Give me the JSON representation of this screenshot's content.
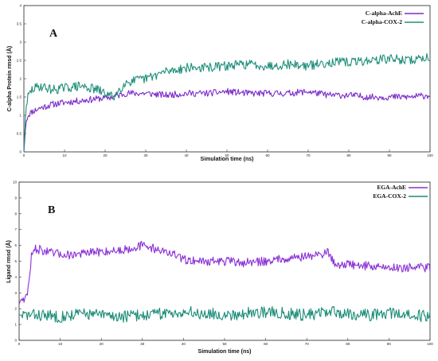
{
  "chart_data": [
    {
      "type": "line",
      "panel_label": "A",
      "xlabel": "Simulation time (ns)",
      "ylabel": "C-alpha Protein rmsd (Å)",
      "xlim": [
        0,
        100
      ],
      "ylim": [
        0,
        4
      ],
      "xticks": [
        0,
        10,
        20,
        30,
        40,
        50,
        60,
        70,
        80,
        90,
        100
      ],
      "yticks": [
        0,
        0.5,
        1,
        1.5,
        2,
        2.5,
        3,
        3.5,
        4
      ],
      "legend_position": "top-right",
      "series": [
        {
          "name": "C-alpha-AchE",
          "color": "#7b2cc9",
          "x": [
            0,
            0.5,
            1,
            2,
            4,
            7,
            10,
            14,
            18,
            22,
            25,
            30,
            35,
            40,
            45,
            50,
            55,
            60,
            65,
            70,
            75,
            80,
            85,
            90,
            95,
            100
          ],
          "values": [
            0,
            0.8,
            1.0,
            1.1,
            1.2,
            1.3,
            1.35,
            1.4,
            1.45,
            1.5,
            1.6,
            1.6,
            1.55,
            1.6,
            1.6,
            1.65,
            1.6,
            1.6,
            1.6,
            1.65,
            1.55,
            1.55,
            1.5,
            1.5,
            1.5,
            1.55
          ]
        },
        {
          "name": "C-alpha-COX-2",
          "color": "#1f8f7a",
          "x": [
            0,
            0.5,
            1,
            2,
            4,
            7,
            10,
            14,
            18,
            22,
            25,
            30,
            35,
            40,
            45,
            50,
            55,
            60,
            65,
            70,
            75,
            80,
            85,
            90,
            95,
            100
          ],
          "values": [
            0,
            1.2,
            1.5,
            1.7,
            1.8,
            1.7,
            1.75,
            1.8,
            1.7,
            1.5,
            1.9,
            2.0,
            2.2,
            2.3,
            2.3,
            2.35,
            2.4,
            2.35,
            2.4,
            2.35,
            2.45,
            2.45,
            2.5,
            2.55,
            2.5,
            2.6
          ]
        }
      ]
    },
    {
      "type": "line",
      "panel_label": "B",
      "xlabel": "Simulation time (ns)",
      "ylabel": "Ligand rmsd (Å)",
      "xlim": [
        0,
        100
      ],
      "ylim": [
        0,
        10
      ],
      "xticks": [
        0,
        10,
        20,
        30,
        40,
        50,
        60,
        70,
        80,
        90,
        100
      ],
      "yticks": [
        0,
        1,
        2,
        3,
        4,
        5,
        6,
        7,
        8,
        9,
        10
      ],
      "legend_position": "top-right",
      "series": [
        {
          "name": "EGA-AchE",
          "color": "#8a2fd6",
          "x": [
            0,
            0.5,
            2,
            3,
            4,
            8,
            12,
            16,
            20,
            25,
            30,
            33,
            37,
            40,
            45,
            50,
            55,
            60,
            65,
            70,
            73,
            75,
            77,
            80,
            85,
            90,
            95,
            100
          ],
          "values": [
            2.3,
            2.6,
            2.8,
            5.3,
            5.8,
            5.5,
            5.4,
            5.5,
            5.6,
            5.7,
            6.0,
            5.8,
            5.5,
            5.1,
            5.0,
            5.0,
            4.9,
            5.0,
            5.2,
            5.3,
            5.4,
            5.6,
            4.8,
            4.8,
            4.7,
            4.6,
            4.6,
            4.6
          ]
        },
        {
          "name": "EGA-COX-2",
          "color": "#1a8c78",
          "x": [
            0,
            5,
            10,
            15,
            20,
            25,
            30,
            35,
            40,
            45,
            50,
            55,
            60,
            65,
            70,
            75,
            80,
            85,
            90,
            95,
            100
          ],
          "values": [
            1.6,
            1.6,
            1.5,
            1.7,
            1.6,
            1.5,
            1.6,
            1.7,
            1.8,
            1.7,
            1.6,
            1.7,
            1.8,
            1.7,
            1.6,
            1.8,
            1.7,
            1.6,
            1.7,
            1.6,
            1.5
          ]
        }
      ]
    }
  ]
}
